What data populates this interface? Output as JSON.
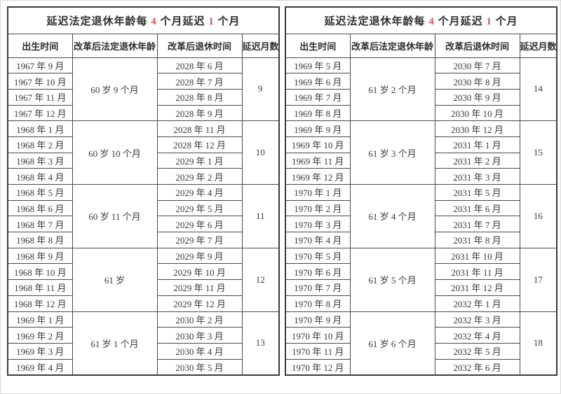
{
  "colors": {
    "accent_red": "#cb5a55",
    "grid_border": "#4a4a4a",
    "text": "#333333"
  },
  "tables": [
    {
      "title": {
        "prefix": "延迟法定退休年龄每 ",
        "num1": "4",
        "mid": " 个月延迟 ",
        "num2": "1",
        "suffix": " 个月"
      },
      "columns": [
        "出生时间",
        "改革后法定退休年龄",
        "改革后退休时间",
        "延迟月数"
      ],
      "groups": [
        {
          "birth_months": [
            "1967 年 9 月",
            "1967 年 10 月",
            "1967 年 11 月",
            "1967 年 12 月"
          ],
          "retirement_age": "60 岁 9 个月",
          "retirement_months": [
            "2028 年 6 月",
            "2028 年 7 月",
            "2028 年 8 月",
            "2028 年 9 月"
          ],
          "delay_months": "9"
        },
        {
          "birth_months": [
            "1968 年 1 月",
            "1968 年 2 月",
            "1968 年 3 月",
            "1968 年 4 月"
          ],
          "retirement_age": "60 岁 10 个月",
          "retirement_months": [
            "2028 年 11 月",
            "2028 年 12 月",
            "2029 年 1 月",
            "2029 年 2 月"
          ],
          "delay_months": "10"
        },
        {
          "birth_months": [
            "1968 年 5 月",
            "1968 年 6 月",
            "1968 年 7 月",
            "1968 年 8 月"
          ],
          "retirement_age": "60 岁 11 个月",
          "retirement_months": [
            "2029 年 4 月",
            "2029 年 5 月",
            "2029 年 6 月",
            "2029 年 7 月"
          ],
          "delay_months": "11"
        },
        {
          "birth_months": [
            "1968 年 9 月",
            "1968 年 10 月",
            "1968 年 11 月",
            "1968 年 12 月"
          ],
          "retirement_age": "61 岁",
          "retirement_months": [
            "2029 年 9 月",
            "2029 年 10 月",
            "2029 年 11 月",
            "2029 年 12 月"
          ],
          "delay_months": "12"
        },
        {
          "birth_months": [
            "1969 年 1 月",
            "1969 年 2 月",
            "1969 年 3 月",
            "1969 年 4 月"
          ],
          "retirement_age": "61 岁 1 个月",
          "retirement_months": [
            "2030 年 2 月",
            "2030 年 3 月",
            "2030 年 4 月",
            "2030 年 5 月"
          ],
          "delay_months": "13"
        }
      ]
    },
    {
      "title": {
        "prefix": "延迟法定退休年龄每 ",
        "num1": "4",
        "mid": " 个月延迟 ",
        "num2": "1",
        "suffix": " 个月"
      },
      "columns": [
        "出生时间",
        "改革后法定退休年龄",
        "改革后退休时间",
        "延迟月数"
      ],
      "groups": [
        {
          "birth_months": [
            "1969 年 5 月",
            "1969 年 6 月",
            "1969 年 7 月",
            "1969 年 8 月"
          ],
          "retirement_age": "61 岁 2 个月",
          "retirement_months": [
            "2030 年 7 月",
            "2030 年 8 月",
            "2030 年 9 月",
            "2030 年 10 月"
          ],
          "delay_months": "14"
        },
        {
          "birth_months": [
            "1969 年 9 月",
            "1969 年 10 月",
            "1969 年 11 月",
            "1969 年 12 月"
          ],
          "retirement_age": "61 岁 3 个月",
          "retirement_months": [
            "2030 年 12 月",
            "2031 年 1 月",
            "2031 年 2 月",
            "2031 年 3 月"
          ],
          "delay_months": "15"
        },
        {
          "birth_months": [
            "1970 年 1 月",
            "1970 年 2 月",
            "1970 年 3 月",
            "1970 年 4 月"
          ],
          "retirement_age": "61 岁 4 个月",
          "retirement_months": [
            "2031 年 5 月",
            "2031 年 6 月",
            "2031 年 7 月",
            "2031 年 8 月"
          ],
          "delay_months": "16"
        },
        {
          "birth_months": [
            "1970 年 5 月",
            "1970 年 6 月",
            "1970 年 7 月",
            "1970 年 8 月"
          ],
          "retirement_age": "61 岁 5 个月",
          "retirement_months": [
            "2031 年 10 月",
            "2031 年 11 月",
            "2031 年 12 月",
            "2032 年 1 月"
          ],
          "delay_months": "17"
        },
        {
          "birth_months": [
            "1970 年 9 月",
            "1970 年 10 月",
            "1970 年 11 月",
            "1970 年 12 月"
          ],
          "retirement_age": "61 岁 6 个月",
          "retirement_months": [
            "2032 年 3 月",
            "2032 年 4 月",
            "2032 年 5 月",
            "2032 年 6 月"
          ],
          "delay_months": "18"
        }
      ]
    }
  ]
}
